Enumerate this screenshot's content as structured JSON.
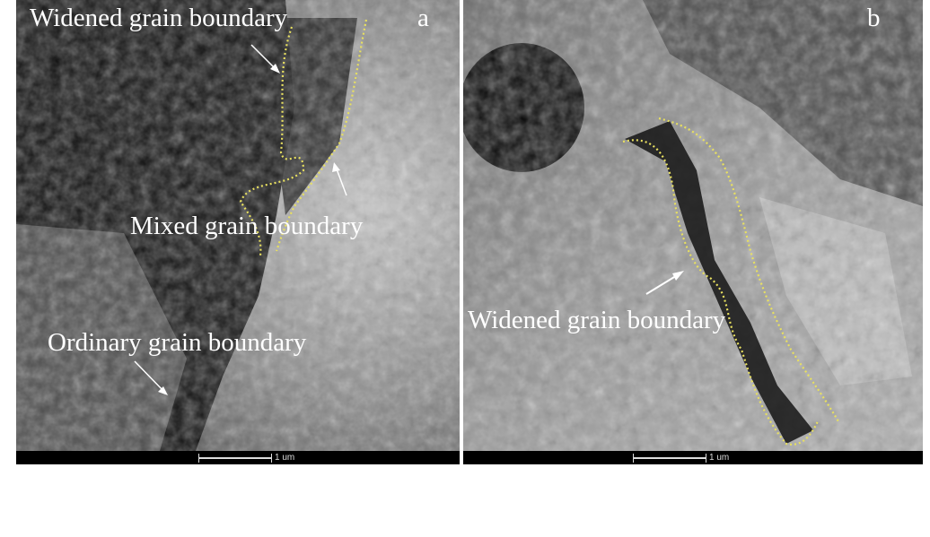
{
  "panels": [
    {
      "letter": "a",
      "labels": [
        "Widened grain boundary",
        "Mixed grain boundary",
        "Ordinary grain boundary"
      ],
      "scale_bar": "1 um"
    },
    {
      "letter": "b",
      "labels": [
        "Widened grain boundary"
      ],
      "scale_bar": "1 um"
    }
  ],
  "colors": {
    "boundary_outline": "#e8e060",
    "label_text": "#ffffff"
  }
}
